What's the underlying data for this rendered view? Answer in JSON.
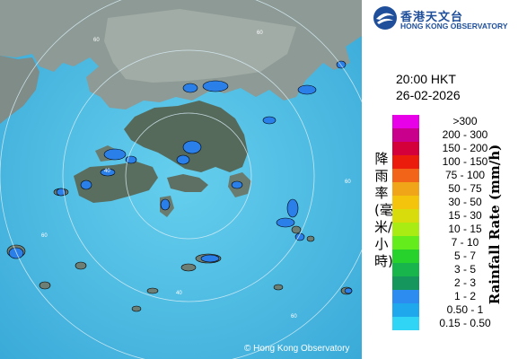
{
  "map": {
    "copyright": "Hong Kong Observatory",
    "ring_labels": [
      "60",
      "60",
      "40",
      "60",
      "40",
      "60",
      "60"
    ]
  },
  "header": {
    "org_name_cn": "香港天文台",
    "org_name_en": "HONG KONG OBSERVATORY",
    "time": "20:00 HKT",
    "date": "26-02-2026"
  },
  "legend": {
    "title_cn": "降雨率(毫米/小時)",
    "title_en": "Rainfall Rate (mm/h)",
    "items": [
      {
        "range": ">300",
        "color": "#e800e8"
      },
      {
        "range": "200 - 300",
        "color": "#c8008c"
      },
      {
        "range": "150 - 200",
        "color": "#d4003c"
      },
      {
        "range": "100 - 150",
        "color": "#ec1c0c"
      },
      {
        "range": "75 - 100",
        "color": "#f26418"
      },
      {
        "range": "50 - 75",
        "color": "#f0a418"
      },
      {
        "range": "30 - 50",
        "color": "#f4c40c"
      },
      {
        "range": "15 - 30",
        "color": "#d8dc0c"
      },
      {
        "range": "10 - 15",
        "color": "#a8ec14"
      },
      {
        "range": "7 - 10",
        "color": "#64ec1c"
      },
      {
        "range": "5 - 7",
        "color": "#28d22c"
      },
      {
        "range": "3 - 5",
        "color": "#18b44c"
      },
      {
        "range": "2 - 3",
        "color": "#14965c"
      },
      {
        "range": "1 - 2",
        "color": "#2c8cf0"
      },
      {
        "range": "0.50 - 1",
        "color": "#20a8ec"
      },
      {
        "range": "0.15 - 0.50",
        "color": "#30d4f4"
      }
    ]
  },
  "colors": {
    "sea": "#52bde0",
    "land": "#8c9894",
    "rain_light": "#2a7fe8"
  }
}
